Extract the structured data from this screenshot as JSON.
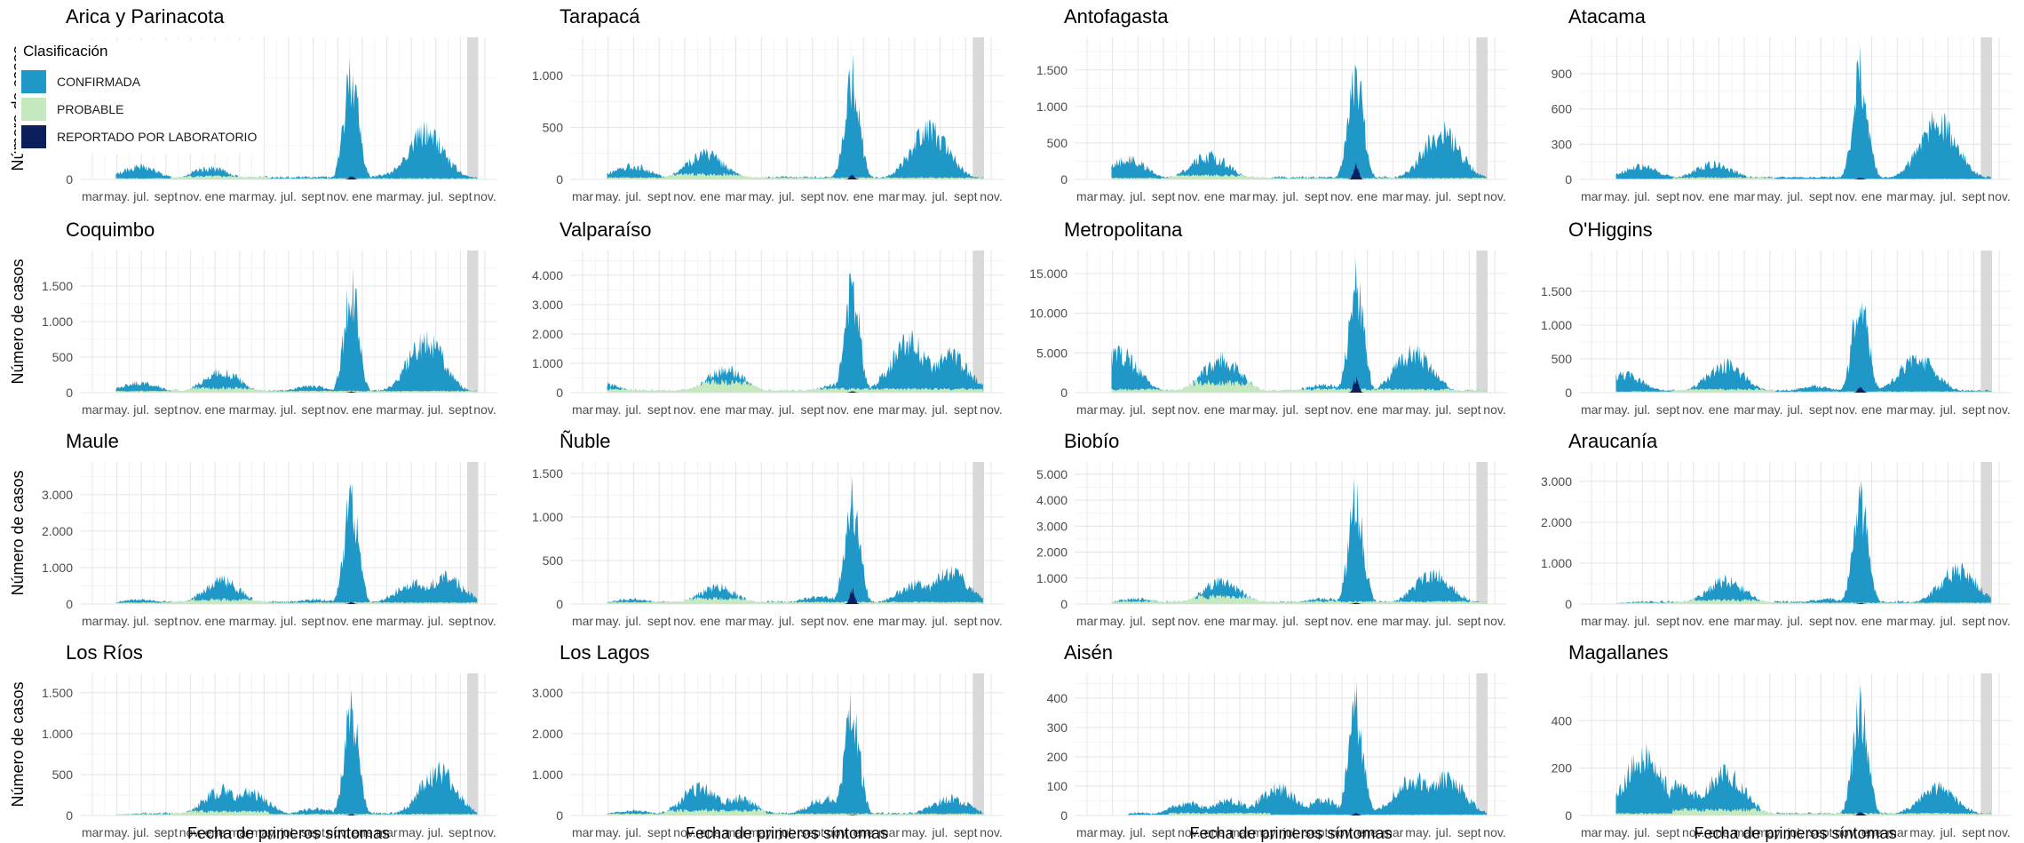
{
  "chart_data": {
    "type": "area",
    "stacked": true,
    "facet_layout": "4x4",
    "xlabel": "Fecha de primeros síntomas",
    "ylabel": "Número de casos",
    "x_tick_labels": [
      "mar",
      "may.",
      "jul.",
      "sept",
      "nov.",
      "ene",
      "mar",
      "may.",
      "jul.",
      "sept",
      "nov.",
      "ene",
      "mar",
      "may.",
      "jul.",
      "sept",
      "nov."
    ],
    "grid": true,
    "shaded_recent_period": true,
    "legend": {
      "title": "Clasificación",
      "placement": "top-left",
      "entries": [
        {
          "name": "CONFIRMADA",
          "color": "#1f97c7"
        },
        {
          "name": "PROBABLE",
          "color": "#c7e9c0"
        },
        {
          "name": "REPORTADO POR LABORATORIO",
          "color": "#0b1f5c"
        }
      ]
    },
    "colors": {
      "confirmada": "#1f97c7",
      "probable": "#c7e9c0",
      "laboratorio": "#0b1f5c",
      "shade": "#d9d9d9"
    },
    "series_profile_note": "",
    "panels": [
      {
        "region": "Arica y Parinacota",
        "yticks": [
          0
        ],
        "ymax": 1400,
        "confirmada_peaks": [
          [
            0.12,
            160
          ],
          [
            0.3,
            140
          ],
          [
            0.66,
            1350
          ],
          [
            0.77,
            80
          ],
          [
            0.85,
            600
          ]
        ],
        "probable_peak": 40,
        "laboratorio_peak": 40
      },
      {
        "region": "Tarapacá",
        "yticks": [
          0,
          500,
          1000
        ],
        "ymax": 1300,
        "confirmada_peaks": [
          [
            0.12,
            160
          ],
          [
            0.3,
            300
          ],
          [
            0.66,
            1200
          ],
          [
            0.85,
            580
          ]
        ],
        "probable_peak": 60,
        "laboratorio_peak": 50
      },
      {
        "region": "Antofagasta",
        "yticks": [
          0,
          500,
          1000,
          1500
        ],
        "ymax": 1850,
        "confirmada_peaks": [
          [
            0.1,
            330
          ],
          [
            0.3,
            390
          ],
          [
            0.66,
            1750
          ],
          [
            0.87,
            780
          ]
        ],
        "probable_peak": 70,
        "laboratorio_peak": 260
      },
      {
        "region": "Atacama",
        "yticks": [
          0,
          300,
          600,
          900
        ],
        "ymax": 1150,
        "confirmada_peaks": [
          [
            0.12,
            130
          ],
          [
            0.3,
            160
          ],
          [
            0.66,
            1100
          ],
          [
            0.85,
            600
          ]
        ],
        "probable_peak": 20,
        "laboratorio_peak": 20
      },
      {
        "region": "Coquimbo",
        "yticks": [
          0,
          500,
          1000,
          1500
        ],
        "ymax": 1900,
        "confirmada_peaks": [
          [
            0.12,
            170
          ],
          [
            0.33,
            350
          ],
          [
            0.56,
            110
          ],
          [
            0.66,
            1800
          ],
          [
            0.85,
            900
          ]
        ],
        "probable_peak": 80,
        "laboratorio_peak": 20
      },
      {
        "region": "Valparaíso",
        "yticks": [
          0,
          1000,
          2000,
          3000,
          4000
        ],
        "ymax": 4600,
        "confirmada_peaks": [
          [
            0.05,
            350
          ],
          [
            0.35,
            950
          ],
          [
            0.63,
            350
          ],
          [
            0.66,
            4200
          ],
          [
            0.8,
            2100
          ],
          [
            0.9,
            1500
          ]
        ],
        "probable_peak": 450,
        "laboratorio_peak": 60
      },
      {
        "region": "Metropolitana",
        "yticks": [
          0,
          5000,
          10000,
          15000
        ],
        "ymax": 17000,
        "confirmada_peaks": [
          [
            0.08,
            6000
          ],
          [
            0.33,
            5200
          ],
          [
            0.58,
            1200
          ],
          [
            0.66,
            16500
          ],
          [
            0.8,
            6000
          ]
        ],
        "probable_peak": 1500,
        "laboratorio_peak": 2200
      },
      {
        "region": "O'Higgins",
        "yticks": [
          0,
          500,
          1000,
          1500
        ],
        "ymax": 2000,
        "confirmada_peaks": [
          [
            0.08,
            330
          ],
          [
            0.33,
            500
          ],
          [
            0.55,
            110
          ],
          [
            0.66,
            1850
          ],
          [
            0.8,
            600
          ]
        ],
        "probable_peak": 60,
        "laboratorio_peak": 100
      },
      {
        "region": "Maule",
        "yticks": [
          0,
          1000,
          2000,
          3000
        ],
        "ymax": 3700,
        "confirmada_peaks": [
          [
            0.12,
            150
          ],
          [
            0.33,
            780
          ],
          [
            0.57,
            150
          ],
          [
            0.66,
            3500
          ],
          [
            0.82,
            700
          ],
          [
            0.9,
            900
          ]
        ],
        "probable_peak": 150,
        "laboratorio_peak": 60
      },
      {
        "region": "Ñuble",
        "yticks": [
          0,
          500,
          1000,
          1500
        ],
        "ymax": 1550,
        "confirmada_peaks": [
          [
            0.12,
            70
          ],
          [
            0.33,
            240
          ],
          [
            0.58,
            100
          ],
          [
            0.66,
            1450
          ],
          [
            0.82,
            280
          ],
          [
            0.9,
            450
          ]
        ],
        "probable_peak": 80,
        "laboratorio_peak": 200
      },
      {
        "region": "Biobío",
        "yticks": [
          0,
          1000,
          2000,
          3000,
          4000,
          5000
        ],
        "ymax": 5200,
        "confirmada_peaks": [
          [
            0.12,
            250
          ],
          [
            0.33,
            1050
          ],
          [
            0.58,
            250
          ],
          [
            0.66,
            4800
          ],
          [
            0.85,
            1400
          ]
        ],
        "probable_peak": 350,
        "laboratorio_peak": 60
      },
      {
        "region": "Araucanía",
        "yticks": [
          0,
          1000,
          2000,
          3000
        ],
        "ymax": 3300,
        "confirmada_peaks": [
          [
            0.12,
            60
          ],
          [
            0.33,
            700
          ],
          [
            0.58,
            150
          ],
          [
            0.66,
            3050
          ],
          [
            0.9,
            1000
          ]
        ],
        "probable_peak": 120,
        "laboratorio_peak": 30
      },
      {
        "region": "Los Ríos",
        "yticks": [
          0,
          500,
          1000,
          1500
        ],
        "ymax": 1650,
        "confirmada_peaks": [
          [
            0.12,
            30
          ],
          [
            0.33,
            380
          ],
          [
            0.4,
            350
          ],
          [
            0.57,
            100
          ],
          [
            0.66,
            1550
          ],
          [
            0.88,
            650
          ]
        ],
        "probable_peak": 60,
        "laboratorio_peak": 20
      },
      {
        "region": "Los Lagos",
        "yticks": [
          0,
          1000,
          2000,
          3000
        ],
        "ymax": 3300,
        "confirmada_peaks": [
          [
            0.12,
            150
          ],
          [
            0.29,
            850
          ],
          [
            0.38,
            500
          ],
          [
            0.6,
            500
          ],
          [
            0.66,
            3200
          ],
          [
            0.9,
            500
          ]
        ],
        "probable_peak": 150,
        "laboratorio_peak": 20
      },
      {
        "region": "Aisén",
        "yticks": [
          0,
          100,
          200,
          300,
          400
        ],
        "ymax": 460,
        "confirmada_peaks": [
          [
            0.25,
            50
          ],
          [
            0.35,
            60
          ],
          [
            0.47,
            110
          ],
          [
            0.58,
            60
          ],
          [
            0.66,
            440
          ],
          [
            0.8,
            150
          ],
          [
            0.88,
            150
          ]
        ],
        "probable_peak": 10,
        "laboratorio_peak": 10
      },
      {
        "region": "Magallanes",
        "yticks": [
          0,
          200,
          400
        ],
        "ymax": 570,
        "confirmada_peaks": [
          [
            0.13,
            310
          ],
          [
            0.22,
            150
          ],
          [
            0.33,
            220
          ],
          [
            0.66,
            560
          ],
          [
            0.85,
            140
          ]
        ],
        "probable_peak": 30,
        "laboratorio_peak": 20
      }
    ]
  }
}
